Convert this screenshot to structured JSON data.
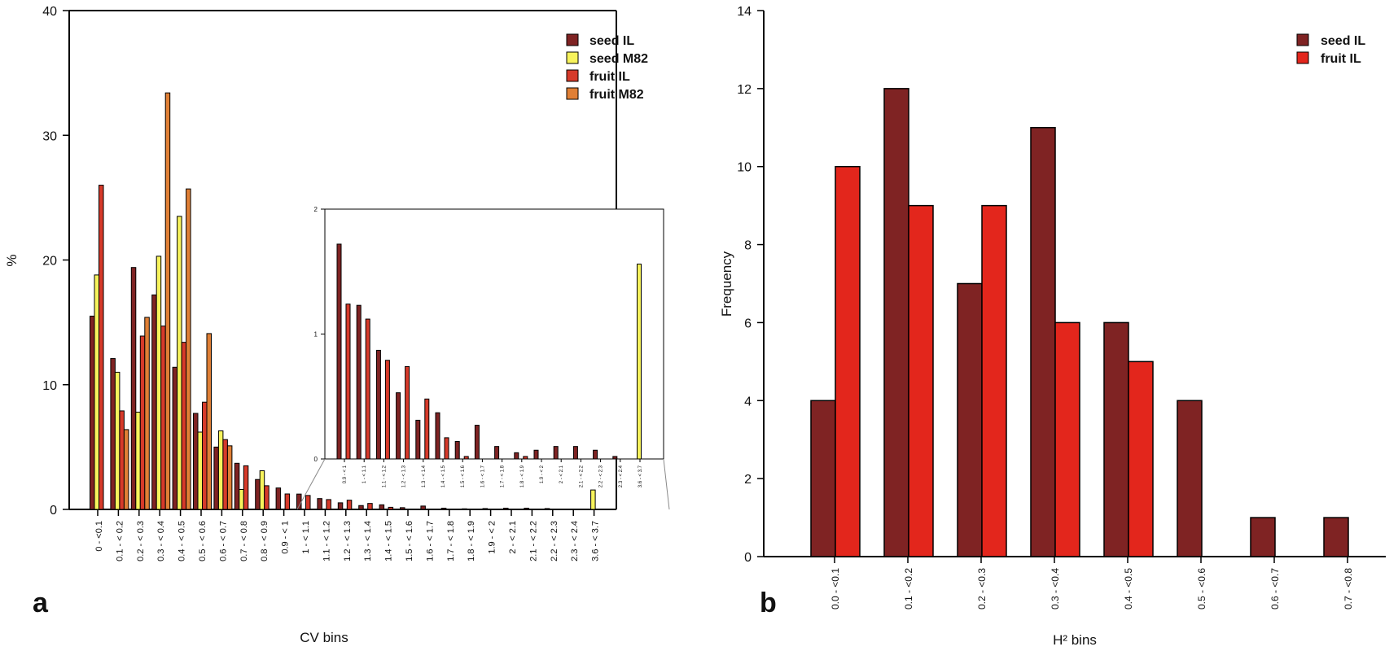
{
  "colors": {
    "seed_il": "#7f2323",
    "seed_m82": "#f7f35c",
    "fruit_il": "#d63a2a",
    "fruit_m82": "#e07f35",
    "fruit_il_b": "#e3261c",
    "outline": "#000000"
  },
  "chart_data": [
    {
      "panel": "a",
      "type": "bar",
      "xlabel": "CV bins",
      "ylabel": "%",
      "ylim": [
        0,
        40
      ],
      "yticks": [
        "0",
        "10",
        "20",
        "30",
        "40"
      ],
      "categories": [
        "0 - <0.1",
        "0.1 - < 0.2",
        "0.2 - < 0.3",
        "0.3 - < 0.4",
        "0.4 - < 0.5",
        "0.5 - < 0.6",
        "0.6 - < 0.7",
        "0.7 - < 0.8",
        "0.8 - < 0.9",
        "0.9 - < 1",
        "1 - < 1.1",
        "1.1 - < 1.2",
        "1.2 - < 1.3",
        "1.3 - < 1.4",
        "1.4 - < 1.5",
        "1.5 - < 1.6",
        "1.6 - < 1.7",
        "1.7 - < 1.8",
        "1.8 - < 1.9",
        "1.9 - < 2",
        "2 - < 2.1",
        "2.1 - < 2.2",
        "2.2 - < 2.3",
        "2.3 - < 2.4",
        "3.6 - < 3.7"
      ],
      "series": [
        {
          "name": "seed IL",
          "values": [
            15.5,
            12.1,
            19.4,
            17.2,
            11.4,
            7.7,
            5.0,
            3.7,
            2.4,
            1.72,
            1.23,
            0.87,
            0.53,
            0.31,
            0.37,
            0.14,
            0.27,
            0.1,
            0.05,
            0.07,
            0.1,
            0.1,
            0.07,
            0.02,
            0.0
          ]
        },
        {
          "name": "seed M82",
          "values": [
            18.8,
            11.0,
            7.8,
            20.3,
            23.5,
            6.2,
            6.3,
            1.6,
            3.1,
            0,
            0,
            0,
            0,
            0,
            0,
            0,
            0,
            0,
            0,
            0,
            0,
            0,
            0,
            0,
            1.56
          ]
        },
        {
          "name": "fruit IL",
          "values": [
            26.0,
            7.9,
            13.9,
            14.7,
            13.4,
            8.6,
            5.6,
            3.5,
            1.9,
            1.24,
            1.12,
            0.79,
            0.74,
            0.48,
            0.17,
            0.02,
            0,
            0,
            0.02,
            0,
            0,
            0,
            0,
            0,
            0
          ]
        },
        {
          "name": "fruit M82",
          "values": [
            0,
            6.4,
            15.4,
            33.4,
            25.7,
            14.1,
            5.1,
            0,
            0,
            0,
            0,
            0,
            0,
            0,
            0,
            0,
            0,
            0,
            0,
            0,
            0,
            0,
            0,
            0,
            0
          ]
        }
      ],
      "legend": [
        "seed IL",
        "seed M82",
        "fruit IL",
        "fruit M82"
      ],
      "legend_position": "top-right",
      "inset": {
        "ylim": [
          0,
          2
        ],
        "yticks": [
          "0",
          "1",
          "2"
        ],
        "categories": [
          "0.9 - < 1",
          "1 - < 1.1",
          "1.1 - < 1.2",
          "1.2 - < 1.3",
          "1.3 - < 1.4",
          "1.4 - < 1.5",
          "1.5 - < 1.6",
          "1.6 - < 1.7",
          "1.7 - < 1.8",
          "1.8 - < 1.9",
          "1.9 - < 2",
          "2 - < 2.1",
          "2.1 - < 2.2",
          "2.2 - < 2.3",
          "2.3 - < 2.4",
          "3.6 - < 3.7"
        ]
      },
      "label": "a"
    },
    {
      "panel": "b",
      "type": "bar",
      "xlabel": "H² bins",
      "ylabel": "Frequency",
      "ylim": [
        0,
        14
      ],
      "yticks": [
        "0",
        "2",
        "4",
        "6",
        "8",
        "10",
        "12",
        "14"
      ],
      "categories": [
        "0.0 - <0.1",
        "0.1 - <0.2",
        "0.2 - <0.3",
        "0.3 - <0.4",
        "0.4 - <0.5",
        "0.5 - <0.6",
        "0.6 - <0.7",
        "0.7 - <0.8"
      ],
      "series": [
        {
          "name": "seed IL",
          "values": [
            4,
            12,
            7,
            11,
            6,
            4,
            1,
            1
          ]
        },
        {
          "name": "fruit IL",
          "values": [
            10,
            9,
            9,
            6,
            5,
            0,
            0,
            0
          ]
        }
      ],
      "legend": [
        "seed IL",
        "fruit IL"
      ],
      "legend_position": "top-right",
      "label": "b"
    }
  ]
}
